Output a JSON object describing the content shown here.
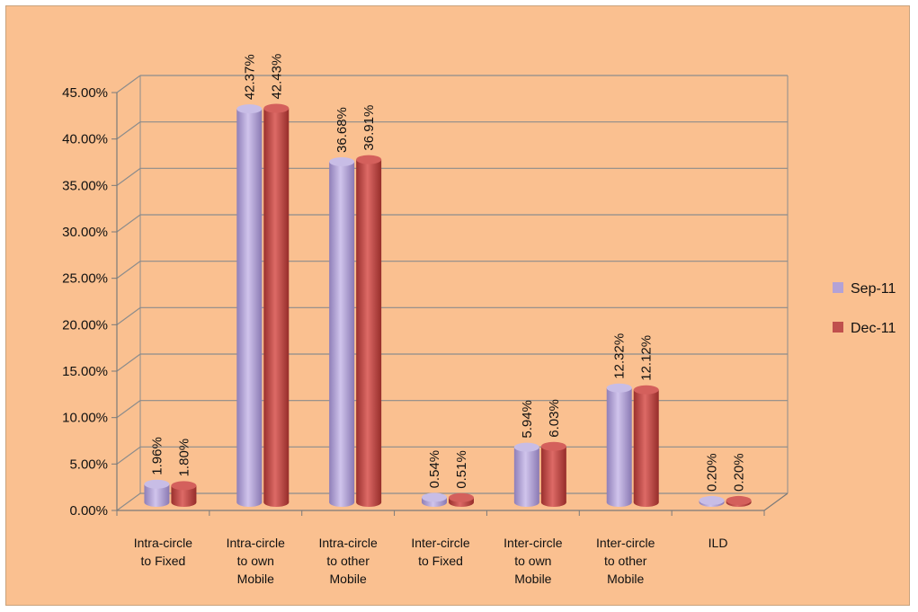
{
  "chart_data": {
    "type": "bar",
    "categories": [
      [
        "Intra-circle",
        "to Fixed"
      ],
      [
        "Intra-circle",
        "to own",
        "Mobile"
      ],
      [
        "Intra-circle",
        "to other",
        "Mobile"
      ],
      [
        "Inter-circle",
        "to Fixed"
      ],
      [
        "Inter-circle",
        "to own",
        "Mobile"
      ],
      [
        "Inter-circle",
        "to other",
        "Mobile"
      ],
      [
        "ILD"
      ]
    ],
    "series": [
      {
        "name": "Sep-11",
        "values": [
          1.96,
          42.37,
          36.68,
          0.54,
          5.94,
          12.32,
          0.2
        ],
        "labels": [
          "1.96%",
          "42.37%",
          "36.68%",
          "0.54%",
          "5.94%",
          "12.32%",
          "0.20%"
        ],
        "color": "#b3a2d6"
      },
      {
        "name": "Dec-11",
        "values": [
          1.8,
          42.43,
          36.91,
          0.51,
          6.03,
          12.12,
          0.2
        ],
        "labels": [
          "1.80%",
          "42.43%",
          "36.91%",
          "0.51%",
          "6.03%",
          "12.12%",
          "0.20%"
        ],
        "color": "#c0504d"
      }
    ],
    "yticks": [
      "0.00%",
      "5.00%",
      "10.00%",
      "15.00%",
      "20.00%",
      "25.00%",
      "30.00%",
      "35.00%",
      "40.00%",
      "45.00%"
    ],
    "ylim": [
      0,
      45
    ],
    "grid": true,
    "legend": "right",
    "background": "#fac090"
  }
}
